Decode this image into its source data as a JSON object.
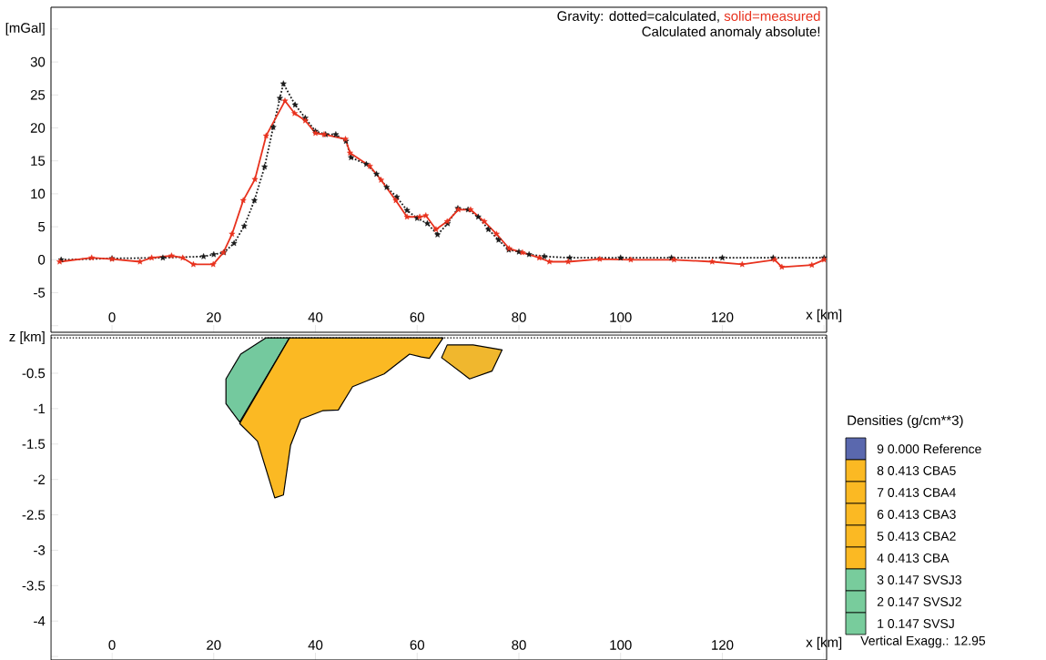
{
  "chart_data": [
    {
      "type": "line",
      "annotations": [
        "Gravity: dotted=calculated,",
        "solid=measured",
        "Calculated anomaly absolute!"
      ],
      "xlim": [
        -12,
        140.5
      ],
      "ylim": [
        -11,
        38.3
      ],
      "xticks": [
        0,
        20,
        40,
        60,
        80,
        100,
        120,
        {
          "value": 140,
          "label": "x [km]"
        }
      ],
      "yticks": [
        {
          "value": 35,
          "label": "[mGal]"
        },
        30,
        25,
        20,
        15,
        10,
        5,
        0,
        -5,
        {
          "value": -10,
          "label": null
        }
      ],
      "series": [
        {
          "color": "#e8321e",
          "marker": "star",
          "line_style": "solid",
          "x": [
            -10.3,
            -4,
            0,
            5.5,
            7.8,
            11.7,
            13.9,
            16,
            19.9,
            21.9,
            23.6,
            25.8,
            28.1,
            30.3,
            34,
            35.9,
            38,
            40,
            41.7,
            45.9,
            46.8,
            50.7,
            52.9,
            55.8,
            58,
            60.5,
            61.7,
            63.7,
            65.9,
            68.1,
            70.5,
            73.2,
            75.6,
            78.1,
            80.7,
            84,
            86,
            89.7,
            95.9,
            102,
            110.5,
            118,
            123.9,
            130.3,
            131.7,
            137.6,
            140
          ],
          "values": [
            -0.3,
            0.3,
            0.1,
            -0.3,
            0.3,
            0.6,
            0.3,
            -0.7,
            -0.7,
            1.1,
            3.9,
            9,
            12.2,
            18.8,
            24.1,
            22.2,
            21.1,
            19.2,
            19,
            18.3,
            16.2,
            14.2,
            12.1,
            9,
            6.5,
            6.5,
            6.7,
            4.6,
            5.8,
            7.6,
            7.6,
            5.8,
            3.9,
            1.7,
            1.1,
            0.3,
            -0.3,
            -0.3,
            0.1,
            0,
            0,
            -0.3,
            -0.7,
            0,
            -1.1,
            -0.8,
            0
          ]
        },
        {
          "color": "#1a1a1a",
          "marker": "star",
          "line_style": "dotted",
          "x": [
            -10,
            0,
            10,
            18,
            20,
            22,
            24,
            26,
            28,
            30,
            31.7,
            33,
            33.7,
            36,
            38,
            40,
            42,
            44,
            46,
            47,
            50,
            52,
            54,
            56,
            58,
            60,
            62,
            64,
            66,
            68,
            70,
            72,
            74,
            76,
            78,
            80,
            82,
            85,
            90,
            100,
            110,
            120,
            130,
            140
          ],
          "values": [
            0,
            0.2,
            0.3,
            0.5,
            0.8,
            1.1,
            2.5,
            5.1,
            9,
            14.1,
            20.1,
            24.5,
            26.7,
            23.5,
            21.5,
            19.5,
            19,
            19,
            18,
            15.5,
            14.5,
            13,
            11,
            9.5,
            7.5,
            6.3,
            5.5,
            3.8,
            5.5,
            7.8,
            7.6,
            6.5,
            4.6,
            3,
            1.5,
            1.2,
            0.8,
            0.5,
            0.3,
            0.3,
            0.3,
            0.3,
            0.3,
            0.3
          ]
        }
      ]
    },
    {
      "type": "area",
      "xlim": [
        -12,
        140.5
      ],
      "ylim": [
        -4.55,
        0.04
      ],
      "xticks": [
        0,
        20,
        40,
        60,
        80,
        100,
        120,
        {
          "value": 140,
          "label": "x [km]"
        }
      ],
      "yticks": [
        {
          "value": 0,
          "label": "z [km]"
        },
        -0.5,
        -1,
        -1.5,
        -2,
        -2.5,
        -3,
        -3.5,
        -4,
        {
          "value": -4.5,
          "label": null
        }
      ],
      "ref_lines": [
        {
          "axis": "y",
          "value": 0,
          "line_style": "dotted"
        }
      ],
      "series": [
        {
          "color": "#fbb923",
          "x": [
            34.9,
            65.1,
            62.4,
            60.8,
            58.5,
            53.5,
            47.3,
            44.5,
            41.4,
            37.1,
            35.1,
            33.7,
            32,
            28.6,
            25.1
          ],
          "values": [
            0,
            0,
            -0.29,
            -0.27,
            -0.23,
            -0.51,
            -0.69,
            -1.02,
            -1.03,
            -1.15,
            -1.52,
            -2.22,
            -2.26,
            -1.46,
            -1.21
          ]
        },
        {
          "color": "#74c99e",
          "x": [
            30.3,
            34.9,
            25.1,
            22.4,
            22.4,
            25.3
          ],
          "values": [
            0,
            0,
            -1.19,
            -0.93,
            -0.58,
            -0.23
          ]
        },
        {
          "color": "#f0b72e",
          "x": [
            65.9,
            71,
            76.7,
            74.7,
            70.3,
            64.8
          ],
          "values": [
            -0.1,
            -0.1,
            -0.17,
            -0.47,
            -0.58,
            -0.28
          ]
        }
      ]
    },
    {
      "type": "other",
      "title": "Densities (g/cm**3)",
      "categories": [
        "9  0.000  Reference",
        "8  0.413  CBA5",
        "7  0.413  CBA4",
        "6  0.413  CBA3",
        "5  0.413  CBA2",
        "4  0.413  CBA",
        "3  0.147  SVSJ3",
        "2  0.147  SVSJ2",
        "1  0.147  SVSJ"
      ],
      "colors": [
        "#5a68ae",
        "#fbb923",
        "#fbb923",
        "#fbb923",
        "#fbb923",
        "#fbb923",
        "#78cc9c",
        "#78cc9c",
        "#78cc9c"
      ],
      "annotations": [
        "Vertical Exagg.:  12.95"
      ]
    }
  ]
}
